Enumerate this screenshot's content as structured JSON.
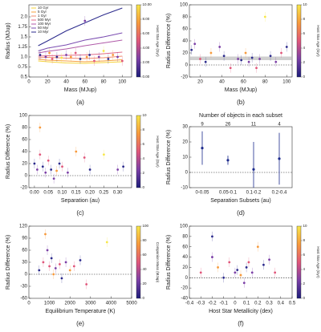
{
  "chart_data": [
    {
      "type": "scatter",
      "caption": "(a)",
      "xlabel": "Mass (MJup)",
      "ylabel": "Radius (MJup)",
      "xlim": [
        0,
        110
      ],
      "xticks": [
        0,
        20,
        40,
        60,
        80,
        100
      ],
      "ylim": [
        0.5,
        2.3
      ],
      "yticks": [
        0.5,
        0.75,
        {
          "value": 1,
          "label": "1.0"
        },
        1.25,
        1.5,
        1.75,
        {
          "value": 2,
          "label": "2.0"
        }
      ],
      "colorbar": {
        "label": "Host Star Age (Gyr)",
        "lim": [
          0,
          10
        ],
        "colors": [
          "#1c1c7a",
          "#7b3fa6",
          "#e0567a",
          "#f79a3c",
          "#f7e74a"
        ],
        "ticks": [
          {
            "value": 0,
            "label": "0.00"
          },
          {
            "value": 2,
            "label": "2.00"
          },
          {
            "value": 4,
            "label": "4.00"
          },
          {
            "value": 6,
            "label": "6.00"
          },
          {
            "value": 8,
            "label": "8.00"
          },
          {
            "value": 10,
            "label": "10.00"
          }
        ]
      },
      "legend": "upper left",
      "series": [
        {
          "type": "line",
          "name": "10 Gyr",
          "color": "#f5d33a",
          "x": [
            10,
            20,
            40,
            60,
            80,
            100
          ],
          "values": [
            0.9,
            0.88,
            0.85,
            0.84,
            0.86,
            0.88
          ]
        },
        {
          "type": "line",
          "name": "5 Gyr",
          "color": "#f7a13d",
          "x": [
            10,
            20,
            40,
            60,
            80,
            100
          ],
          "values": [
            0.94,
            0.92,
            0.9,
            0.88,
            0.9,
            0.93
          ]
        },
        {
          "type": "line",
          "name": "1 Gyr",
          "color": "#f28a6b",
          "x": [
            10,
            20,
            40,
            60,
            80,
            100
          ],
          "values": [
            0.98,
            0.99,
            0.97,
            0.96,
            0.98,
            1.02
          ]
        },
        {
          "type": "line",
          "name": "500 Myr",
          "color": "#e06a8a",
          "x": [
            10,
            20,
            40,
            60,
            80,
            100
          ],
          "values": [
            1.02,
            1.03,
            1.04,
            1.05,
            1.08,
            1.12
          ]
        },
        {
          "type": "line",
          "name": "100 Myr",
          "color": "#b05aa8",
          "x": [
            10,
            20,
            40,
            60,
            80,
            100
          ],
          "values": [
            1.1,
            1.14,
            1.2,
            1.28,
            1.35,
            1.42
          ]
        },
        {
          "type": "line",
          "name": "50 Myr",
          "color": "#7a4cb0",
          "x": [
            10,
            20,
            40,
            60,
            80,
            100
          ],
          "values": [
            1.15,
            1.22,
            1.3,
            1.42,
            1.5,
            1.6
          ]
        },
        {
          "type": "line",
          "name": "10 Myr",
          "color": "#2b2a8c",
          "x": [
            10,
            20,
            40,
            60,
            80,
            100
          ],
          "values": [
            1.28,
            1.4,
            1.65,
            1.85,
            2.05,
            2.22
          ]
        },
        {
          "type": "scatter",
          "x": [
            12,
            18,
            22,
            25,
            30,
            35,
            40,
            45,
            50,
            55,
            60,
            62,
            65,
            70,
            75,
            80,
            85,
            90,
            95,
            100
          ],
          "values": [
            1.05,
            1.0,
            1.1,
            0.95,
            1.0,
            0.98,
            1.05,
            1.0,
            1.1,
            0.95,
            1.9,
            1.0,
            1.05,
            0.9,
            1.0,
            1.15,
            0.95,
            1.05,
            1.0,
            0.9
          ],
          "colors": [
            "#2b2a8c",
            "#7b3fa6",
            "#f79a3c",
            "#e0567a",
            "#2b2a8c",
            "#f7e74a",
            "#7b3fa6",
            "#f79a3c",
            "#e0567a",
            "#2b2a8c",
            "#7b3fa6",
            "#f79a3c",
            "#2b2a8c",
            "#e0567a",
            "#7b3fa6",
            "#f7e74a",
            "#2b2a8c",
            "#f79a3c",
            "#7b3fa6",
            "#e0567a"
          ]
        }
      ]
    },
    {
      "type": "scatter",
      "caption": "(b)",
      "xlabel": "Mass (MJup)",
      "ylabel": "Radius Difference (%)",
      "xlim": [
        10,
        105
      ],
      "xticks": [
        20,
        40,
        60,
        80,
        100
      ],
      "ylim": [
        -20,
        100
      ],
      "yticks": [
        -20,
        0,
        20,
        40,
        60,
        80,
        100
      ],
      "hline": 0,
      "band": [
        8,
        14
      ],
      "colorbar": {
        "label": "Host Star Age (Gyr)",
        "lim": [
          0,
          10
        ],
        "colors": [
          "#1c1c7a",
          "#7b3fa6",
          "#e0567a",
          "#f79a3c",
          "#f7e74a"
        ],
        "ticks": [
          0,
          2,
          4,
          6,
          8,
          10
        ]
      },
      "series": [
        {
          "type": "scatter",
          "x": [
            12,
            15,
            20,
            25,
            30,
            38,
            42,
            48,
            55,
            58,
            62,
            65,
            68,
            72,
            75,
            80,
            85,
            90,
            95,
            100
          ],
          "values": [
            25,
            35,
            10,
            5,
            20,
            30,
            15,
            -5,
            10,
            8,
            20,
            5,
            12,
            -5,
            10,
            80,
            15,
            5,
            20,
            30
          ],
          "colors": [
            "#2b2a8c",
            "#7b3fa6",
            "#e0567a",
            "#2b2a8c",
            "#f79a3c",
            "#7b3fa6",
            "#2b2a8c",
            "#e0567a",
            "#7b3fa6",
            "#2b2a8c",
            "#f79a3c",
            "#7b3fa6",
            "#2b2a8c",
            "#e0567a",
            "#7b3fa6",
            "#f7e74a",
            "#2b2a8c",
            "#7b3fa6",
            "#e0567a",
            "#2b2a8c"
          ]
        }
      ]
    },
    {
      "type": "scatter",
      "caption": "(c)",
      "xlabel": "Separation (au)",
      "ylabel": "Radius Difference (%)",
      "xlim": [
        -0.02,
        0.35
      ],
      "xticks": [
        {
          "value": 0,
          "label": "0.00"
        },
        0.05,
        {
          "value": 0.1,
          "label": "0.10"
        },
        0.15,
        {
          "value": 0.2,
          "label": "0.20"
        },
        0.25,
        {
          "value": 0.3,
          "label": "0.30"
        }
      ],
      "ylim": [
        -20,
        100
      ],
      "yticks": [
        -20,
        0,
        20,
        40,
        60,
        80,
        100
      ],
      "hline": 0,
      "colorbar": {
        "label": "Host Star Age (Gyr)",
        "lim": [
          0,
          10
        ],
        "colors": [
          "#1c1c7a",
          "#7b3fa6",
          "#e0567a",
          "#f79a3c",
          "#f7e74a"
        ],
        "ticks": [
          0,
          2,
          4,
          6,
          8,
          10
        ]
      },
      "series": [
        {
          "type": "scatter",
          "x": [
            0,
            0.01,
            0.02,
            0.02,
            0.03,
            0.04,
            0.05,
            0.06,
            0.07,
            0.08,
            0.09,
            0.1,
            0.12,
            0.15,
            0.18,
            0.2,
            0.25,
            0.3,
            0.32
          ],
          "values": [
            20,
            10,
            35,
            80,
            15,
            5,
            25,
            10,
            -5,
            8,
            20,
            15,
            5,
            40,
            30,
            10,
            35,
            10,
            15
          ],
          "colors": [
            "#2b2a8c",
            "#7b3fa6",
            "#e0567a",
            "#f79a3c",
            "#2b2a8c",
            "#7b3fa6",
            "#e0567a",
            "#2b2a8c",
            "#7b3fa6",
            "#f79a3c",
            "#2b2a8c",
            "#e0567a",
            "#7b3fa6",
            "#f79a3c",
            "#e0567a",
            "#2b2a8c",
            "#f7e74a",
            "#7b3fa6",
            "#2b2a8c"
          ]
        }
      ]
    },
    {
      "type": "errorbar",
      "caption": "(d)",
      "title": "Number of objects in each subset",
      "xlabel": "Separation Subsets (au)",
      "ylabel": "Radius Difference (%)",
      "categories": [
        "0-0.05",
        "0.05-0.1",
        "0.1-0.2",
        "0.2-0.4"
      ],
      "counts": [
        9,
        26,
        11,
        4
      ],
      "ylim": [
        -10,
        30
      ],
      "yticks": [
        -10,
        0,
        10,
        20,
        30
      ],
      "hline": 0,
      "series": [
        {
          "type": "errorbar",
          "color": "#1c2a8c",
          "values": [
            16,
            8,
            2,
            9
          ],
          "yerr": [
            11,
            3,
            18,
            17
          ]
        }
      ]
    },
    {
      "type": "scatter",
      "caption": "(e)",
      "xlabel": "Equilibrium Temperature (K)",
      "ylabel": "Radius Difference (%)",
      "xlim": [
        0,
        5000
      ],
      "xticks": [
        0,
        1000,
        2000,
        3000,
        4000,
        5000
      ],
      "ylim": [
        -60,
        120
      ],
      "yticks": [
        -60,
        -30,
        0,
        30,
        60,
        90,
        120
      ],
      "hline": 0,
      "colorbar": {
        "label": "Companion Mass (MJup)",
        "lim": [
          0,
          100
        ],
        "colors": [
          "#1c1c7a",
          "#7b3fa6",
          "#e0567a",
          "#f79a3c",
          "#f7e74a"
        ],
        "ticks": [
          0,
          20,
          40,
          60,
          80,
          100
        ]
      },
      "series": [
        {
          "type": "scatter",
          "x": [
            500,
            700,
            800,
            900,
            1000,
            1100,
            1200,
            1300,
            1500,
            1600,
            1800,
            2000,
            2200,
            2500,
            2800,
            3800
          ],
          "values": [
            10,
            30,
            100,
            60,
            20,
            40,
            0,
            15,
            25,
            -10,
            30,
            10,
            20,
            35,
            -25,
            80
          ],
          "colors": [
            "#2b2a8c",
            "#e0567a",
            "#f79a3c",
            "#7b3fa6",
            "#e0567a",
            "#2b2a8c",
            "#f79a3c",
            "#7b3fa6",
            "#e0567a",
            "#2b2a8c",
            "#7b3fa6",
            "#f79a3c",
            "#e0567a",
            "#2b2a8c",
            "#e0567a",
            "#f7e74a"
          ]
        }
      ]
    },
    {
      "type": "scatter",
      "caption": "(f)",
      "xlabel": "Host Star Metallicity (dex)",
      "ylabel": "Radius Difference (%)",
      "xlim": [
        -0.4,
        0.5
      ],
      "xticks": [
        -0.4,
        -0.3,
        -0.2,
        -0.1,
        0,
        0.1,
        0.2,
        0.3,
        0.4,
        0.5
      ],
      "ylim": [
        -40,
        100
      ],
      "yticks": [
        -40,
        -20,
        0,
        20,
        40,
        60,
        80,
        100
      ],
      "hline": 0,
      "colorbar": {
        "label": "Host Star Age (Gyr)",
        "lim": [
          0,
          10
        ],
        "colors": [
          "#1c1c7a",
          "#7b3fa6",
          "#e0567a",
          "#f79a3c",
          "#f7e74a"
        ],
        "ticks": [
          0,
          2,
          4,
          6,
          8,
          10
        ]
      },
      "series": [
        {
          "type": "scatter",
          "x": [
            -0.3,
            -0.2,
            -0.2,
            -0.15,
            -0.1,
            -0.05,
            0,
            0.02,
            0.05,
            0.08,
            0.1,
            0.12,
            0.15,
            0.2,
            0.25,
            0.3,
            0.35
          ],
          "values": [
            10,
            80,
            40,
            20,
            0,
            30,
            10,
            15,
            5,
            -10,
            20,
            30,
            10,
            60,
            25,
            35,
            10
          ],
          "colors": [
            "#e0567a",
            "#2b2a8c",
            "#7b3fa6",
            "#f79a3c",
            "#2b2a8c",
            "#e0567a",
            "#7b3fa6",
            "#2b2a8c",
            "#f79a3c",
            "#7b3fa6",
            "#2b2a8c",
            "#e0567a",
            "#7b3fa6",
            "#f79a3c",
            "#2b2a8c",
            "#7b3fa6",
            "#e0567a"
          ]
        }
      ]
    }
  ]
}
